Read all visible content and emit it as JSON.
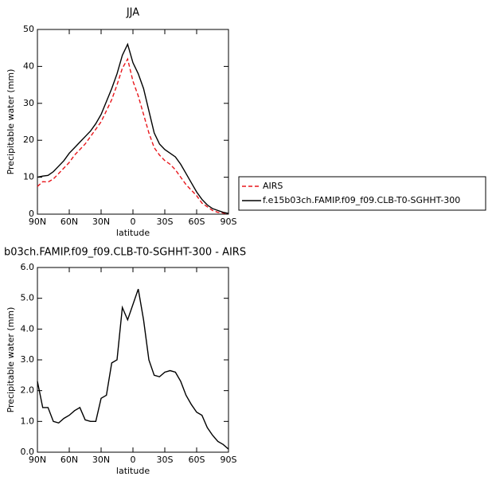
{
  "chart_data": [
    {
      "type": "line",
      "title": "JJA",
      "ylabel": "Precipitable water (mm)",
      "xlabel": "latitude",
      "x": [
        90,
        85,
        80,
        75,
        70,
        65,
        60,
        55,
        50,
        45,
        40,
        35,
        30,
        25,
        20,
        15,
        10,
        5,
        0,
        -5,
        -10,
        -15,
        -20,
        -25,
        -30,
        -35,
        -40,
        -45,
        -50,
        -55,
        -60,
        -65,
        -70,
        -75,
        -80,
        -85,
        -90
      ],
      "xlim": [
        90,
        -90
      ],
      "xticks": [
        {
          "value": 90,
          "label": "90N"
        },
        {
          "value": 60,
          "label": "60N"
        },
        {
          "value": 30,
          "label": "30N"
        },
        0,
        {
          "value": -30,
          "label": "30S"
        },
        {
          "value": -60,
          "label": "60S"
        },
        {
          "value": -90,
          "label": "90S"
        }
      ],
      "ylim": [
        0,
        50
      ],
      "yticks": [
        0,
        10,
        20,
        30,
        40,
        50
      ],
      "series": [
        {
          "name": "AIRS",
          "color": "#e8161b",
          "dashed": true,
          "values": [
            7.5,
            8.8,
            8.7,
            9.5,
            11,
            12.5,
            14,
            16,
            17.5,
            19,
            21,
            23,
            25,
            28,
            31,
            35,
            39.5,
            42,
            36,
            32,
            27,
            22,
            18,
            16,
            14.5,
            13.5,
            12,
            10,
            8,
            6.5,
            5,
            3,
            2,
            1,
            0.5,
            0.3,
            0.1
          ]
        },
        {
          "name": "f.e15b03ch.FAMIP.f09_f09.CLB-T0-SGHHT-300",
          "color": "#000000",
          "dashed": false,
          "values": [
            10,
            10.3,
            10.5,
            11.5,
            13,
            14.5,
            16.5,
            18,
            19.5,
            21,
            22.5,
            24.5,
            27,
            30.5,
            34,
            38,
            43,
            46,
            41,
            38,
            34,
            28,
            22,
            19,
            17.5,
            16.5,
            15.5,
            13.5,
            11,
            8.5,
            6,
            4,
            2.5,
            1.5,
            1,
            0.5,
            0.2
          ]
        }
      ]
    },
    {
      "type": "line",
      "title": "b03ch.FAMIP.f09_f09.CLB-T0-SGHHT-300 - AIRS",
      "ylabel": "Precipitable water (mm)",
      "xlabel": "latitude",
      "x": [
        90,
        85,
        80,
        75,
        70,
        65,
        60,
        55,
        50,
        45,
        40,
        35,
        30,
        25,
        20,
        15,
        10,
        5,
        0,
        -5,
        -10,
        -15,
        -20,
        -25,
        -30,
        -35,
        -40,
        -45,
        -50,
        -55,
        -60,
        -65,
        -70,
        -75,
        -80,
        -85,
        -90
      ],
      "xlim": [
        90,
        -90
      ],
      "xticks": [
        {
          "value": 90,
          "label": "90N"
        },
        {
          "value": 60,
          "label": "60N"
        },
        {
          "value": 30,
          "label": "30N"
        },
        0,
        {
          "value": -30,
          "label": "30S"
        },
        {
          "value": -60,
          "label": "60S"
        },
        {
          "value": -90,
          "label": "90S"
        }
      ],
      "ylim": [
        0,
        6
      ],
      "yticks": [
        {
          "value": 0,
          "label": "0.0"
        },
        {
          "value": 1,
          "label": "1.0"
        },
        {
          "value": 2,
          "label": "2.0"
        },
        {
          "value": 3,
          "label": "3.0"
        },
        {
          "value": 4,
          "label": "4.0"
        },
        {
          "value": 5,
          "label": "5.0"
        },
        {
          "value": 6,
          "label": "6.0"
        }
      ],
      "series": [
        {
          "color": "#000000",
          "dashed": false,
          "values": [
            2.3,
            1.45,
            1.45,
            1.0,
            0.95,
            1.1,
            1.2,
            1.35,
            1.45,
            1.05,
            1.0,
            1.0,
            1.75,
            1.85,
            2.9,
            3.0,
            4.7,
            4.3,
            4.8,
            5.3,
            4.3,
            3.0,
            2.5,
            2.45,
            2.6,
            2.65,
            2.6,
            2.3,
            1.85,
            1.55,
            1.3,
            1.2,
            0.8,
            0.55,
            0.35,
            0.25,
            0.1
          ]
        }
      ]
    }
  ]
}
